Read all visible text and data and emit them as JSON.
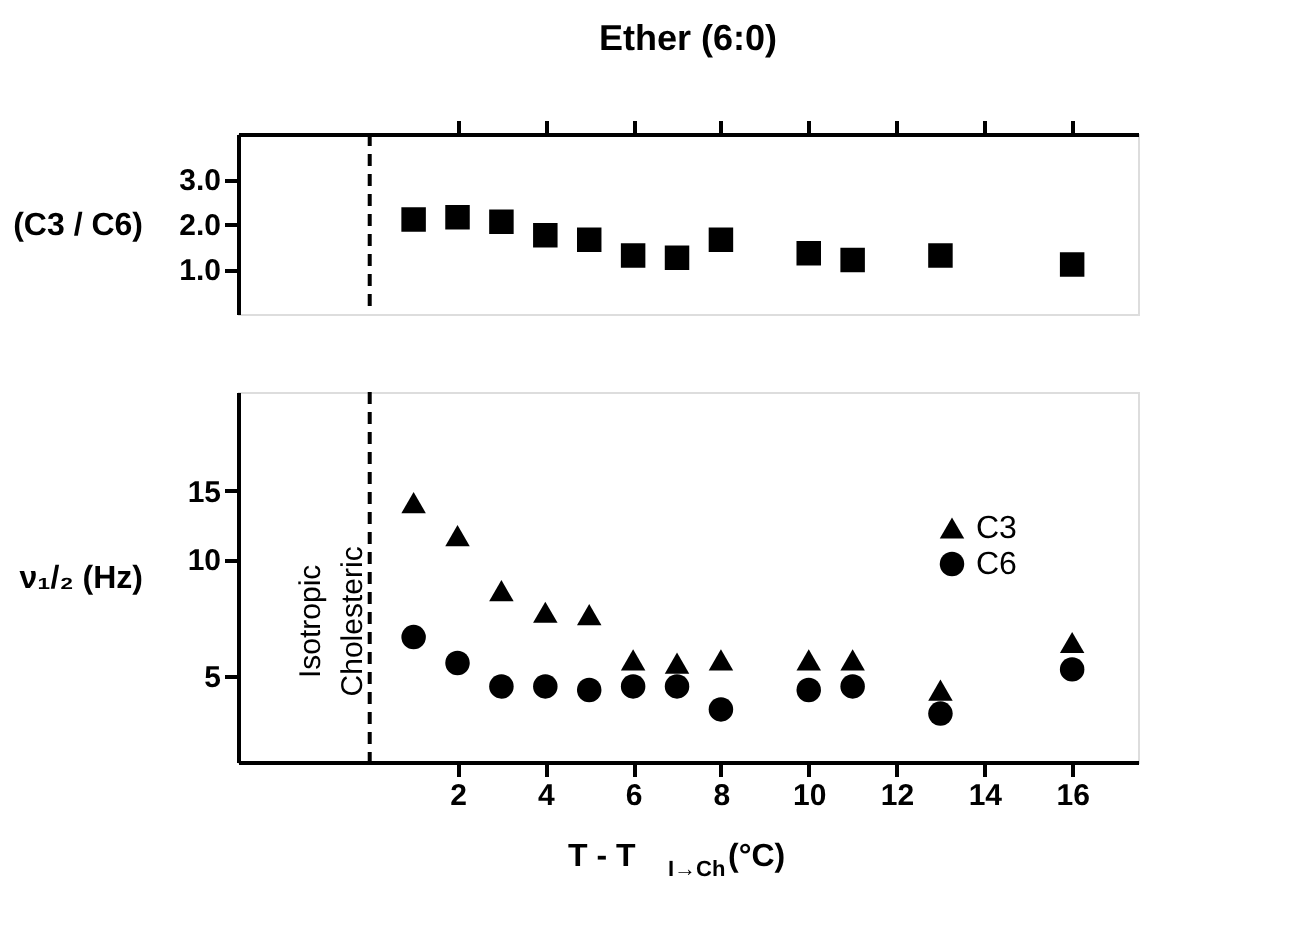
{
  "chart_data": [
    {
      "type": "scatter",
      "title": "Ether (6:0)",
      "ylabel": "(C3 / C6)",
      "marker": "square",
      "grid": false,
      "tick_labels": "y",
      "xlim": [
        -3,
        17.5
      ],
      "xticks": [
        {
          "value": 2,
          "label": null
        },
        {
          "value": 4,
          "label": null
        },
        {
          "value": 6,
          "label": null
        },
        {
          "value": 8,
          "label": null
        },
        {
          "value": 10,
          "label": null
        },
        {
          "value": 12,
          "label": null
        },
        {
          "value": 14,
          "label": null
        },
        {
          "value": 16,
          "label": null
        }
      ],
      "ylim": [
        0,
        4
      ],
      "yticks": [
        {
          "value": 1,
          "label": "1.0"
        },
        {
          "value": 2,
          "label": "2.0"
        },
        {
          "value": 3,
          "label": "3.0"
        }
      ],
      "ref_lines": [
        {
          "axis": "x",
          "value": 0,
          "line_style": "dashed",
          "color": "#000000"
        }
      ],
      "x": [
        1,
        2,
        3,
        4,
        5,
        6,
        7,
        8,
        10,
        11,
        13,
        16
      ],
      "series": [
        {
          "color": "#000000",
          "values": [
            2.1,
            2.15,
            2.05,
            1.75,
            1.65,
            1.3,
            1.25,
            1.65,
            1.35,
            1.2,
            1.3,
            1.1
          ]
        }
      ]
    },
    {
      "type": "scatter",
      "xlabel": "T - T$_{I→Ch}$(°C)",
      "ylabel": "ν₁/₂ (Hz)",
      "grid": false,
      "log": "y",
      "legend": "top right",
      "xlim": [
        -3,
        17.5
      ],
      "xticks": [
        2,
        4,
        6,
        8,
        10,
        12,
        14,
        16
      ],
      "ylim": [
        3,
        27
      ],
      "yticks": [
        5,
        10,
        15
      ],
      "ref_lines": [
        {
          "axis": "x",
          "value": 0,
          "line_style": "dashed",
          "color": "#000000"
        }
      ],
      "annotations": [
        "Isotropic",
        "Cholesteric"
      ],
      "x": [
        1,
        2,
        3,
        4,
        5,
        6,
        7,
        8,
        10,
        11,
        13,
        16
      ],
      "series": [
        {
          "name": "C3",
          "color": "#000000",
          "marker": "triangle",
          "values": [
            14,
            11.5,
            8.3,
            7.3,
            7.2,
            5.5,
            5.4,
            5.5,
            5.5,
            5.5,
            4.6,
            6.1
          ]
        },
        {
          "name": "C6",
          "color": "#000000",
          "marker": "circle",
          "values": [
            6.3,
            5.4,
            4.7,
            4.7,
            4.6,
            4.7,
            4.7,
            4.1,
            4.6,
            4.7,
            4.0,
            5.2
          ]
        }
      ]
    }
  ]
}
